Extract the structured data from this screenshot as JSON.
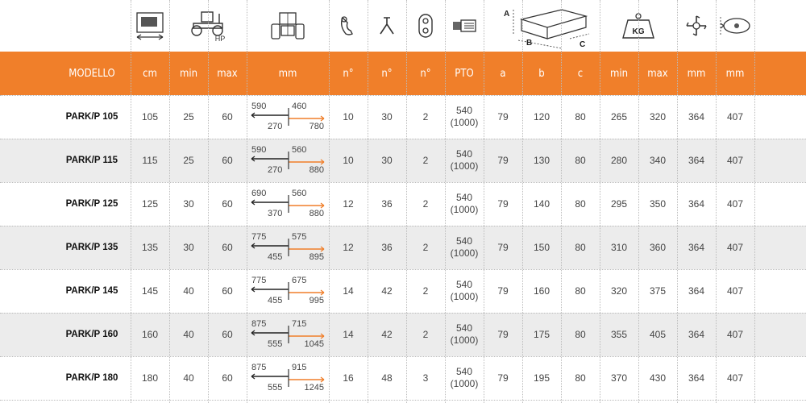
{
  "header_labels": [
    "MODELLO",
    "cm",
    "min",
    "max",
    "mm",
    "n°",
    "n°",
    "n°",
    "PTO",
    "a",
    "b",
    "c",
    "min",
    "max",
    "mm",
    "mm"
  ],
  "icons": {
    "hp_label": "HP",
    "kg_label": "KG",
    "dim_a": "A",
    "dim_b": "B",
    "dim_c": "C"
  },
  "rows": [
    {
      "model": "PARK/P 105",
      "cm": "105",
      "hp_min": "25",
      "hp_max": "60",
      "d1": "590",
      "d2": "460",
      "d3": "270",
      "d4": "780",
      "n1": "10",
      "n2": "30",
      "n3": "2",
      "pto1": "540",
      "pto2": "(1000)",
      "a": "79",
      "b": "120",
      "c": "80",
      "kg_min": "265",
      "kg_max": "320",
      "mm1": "364",
      "mm2": "407"
    },
    {
      "model": "PARK/P 115",
      "cm": "115",
      "hp_min": "25",
      "hp_max": "60",
      "d1": "590",
      "d2": "560",
      "d3": "270",
      "d4": "880",
      "n1": "10",
      "n2": "30",
      "n3": "2",
      "pto1": "540",
      "pto2": "(1000)",
      "a": "79",
      "b": "130",
      "c": "80",
      "kg_min": "280",
      "kg_max": "340",
      "mm1": "364",
      "mm2": "407"
    },
    {
      "model": "PARK/P 125",
      "cm": "125",
      "hp_min": "30",
      "hp_max": "60",
      "d1": "690",
      "d2": "560",
      "d3": "370",
      "d4": "880",
      "n1": "12",
      "n2": "36",
      "n3": "2",
      "pto1": "540",
      "pto2": "(1000)",
      "a": "79",
      "b": "140",
      "c": "80",
      "kg_min": "295",
      "kg_max": "350",
      "mm1": "364",
      "mm2": "407"
    },
    {
      "model": "PARK/P 135",
      "cm": "135",
      "hp_min": "30",
      "hp_max": "60",
      "d1": "775",
      "d2": "575",
      "d3": "455",
      "d4": "895",
      "n1": "12",
      "n2": "36",
      "n3": "2",
      "pto1": "540",
      "pto2": "(1000)",
      "a": "79",
      "b": "150",
      "c": "80",
      "kg_min": "310",
      "kg_max": "360",
      "mm1": "364",
      "mm2": "407"
    },
    {
      "model": "PARK/P 145",
      "cm": "145",
      "hp_min": "40",
      "hp_max": "60",
      "d1": "775",
      "d2": "675",
      "d3": "455",
      "d4": "995",
      "n1": "14",
      "n2": "42",
      "n3": "2",
      "pto1": "540",
      "pto2": "(1000)",
      "a": "79",
      "b": "160",
      "c": "80",
      "kg_min": "320",
      "kg_max": "375",
      "mm1": "364",
      "mm2": "407"
    },
    {
      "model": "PARK/P 160",
      "cm": "160",
      "hp_min": "40",
      "hp_max": "60",
      "d1": "875",
      "d2": "715",
      "d3": "555",
      "d4": "1045",
      "n1": "14",
      "n2": "42",
      "n3": "2",
      "pto1": "540",
      "pto2": "(1000)",
      "a": "79",
      "b": "175",
      "c": "80",
      "kg_min": "355",
      "kg_max": "405",
      "mm1": "364",
      "mm2": "407"
    },
    {
      "model": "PARK/P 180",
      "cm": "180",
      "hp_min": "40",
      "hp_max": "60",
      "d1": "875",
      "d2": "915",
      "d3": "555",
      "d4": "1245",
      "n1": "16",
      "n2": "48",
      "n3": "3",
      "pto1": "540",
      "pto2": "(1000)",
      "a": "79",
      "b": "195",
      "c": "80",
      "kg_min": "370",
      "kg_max": "430",
      "mm1": "364",
      "mm2": "407"
    }
  ],
  "colors": {
    "header_bg": "#f07f2a",
    "alt_row": "#ececec",
    "arrow_orange": "#f07f2a",
    "arrow_dark": "#222222"
  }
}
